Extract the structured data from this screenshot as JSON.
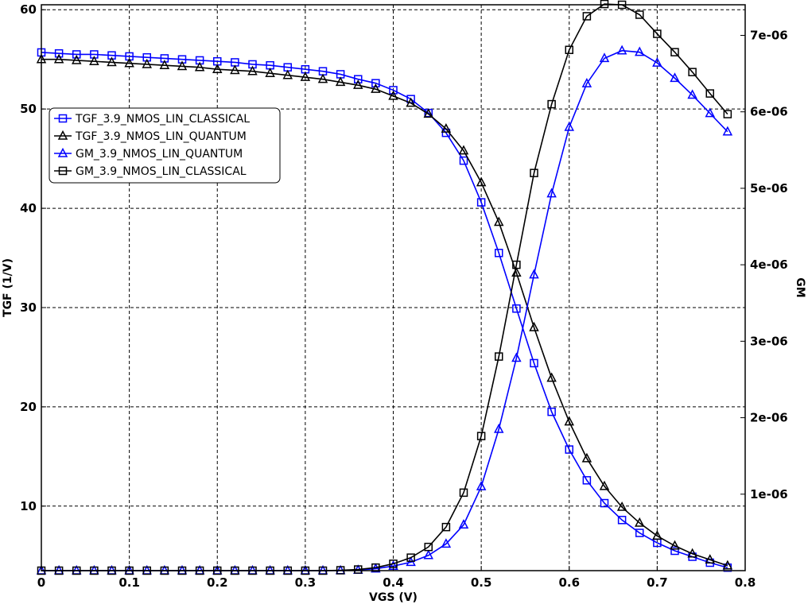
{
  "chart_data": {
    "type": "line",
    "xlabel": "VGS (V)",
    "ylabel": "TGF (1/V)",
    "y2label": "GM",
    "xlim": [
      0,
      0.8
    ],
    "ylim": [
      3.5,
      60.5
    ],
    "y2lim": [
      0,
      7.4e-06
    ],
    "x_ticks": [
      "0",
      "0.1",
      "0.2",
      "0.3",
      "0.4",
      "0.5",
      "0.6",
      "0.7",
      "0.8"
    ],
    "y_ticks": [
      "10",
      "20",
      "30",
      "40",
      "50",
      "60"
    ],
    "y2_ticks": [
      "1e-06",
      "2e-06",
      "3e-06",
      "4e-06",
      "5e-06",
      "6e-06",
      "7e-06"
    ],
    "grid": true,
    "legend_position": "left, upper-middle",
    "x": [
      0,
      0.02,
      0.04,
      0.06,
      0.08,
      0.1,
      0.12,
      0.14,
      0.16,
      0.18,
      0.2,
      0.22,
      0.24,
      0.26,
      0.28,
      0.3,
      0.32,
      0.34,
      0.36,
      0.38,
      0.4,
      0.42,
      0.44,
      0.46,
      0.48,
      0.5,
      0.52,
      0.54,
      0.56,
      0.58,
      0.6,
      0.62,
      0.64,
      0.66,
      0.68,
      0.7,
      0.72,
      0.74,
      0.76,
      0.78
    ],
    "series": [
      {
        "name": "TGF_3.9_NMOS_LIN_CLASSICAL",
        "axis": "left",
        "color": "#0000ff",
        "marker": "square",
        "values": [
          55.7,
          55.6,
          55.5,
          55.5,
          55.4,
          55.3,
          55.2,
          55.1,
          55.0,
          54.9,
          54.8,
          54.7,
          54.5,
          54.4,
          54.2,
          54.0,
          53.8,
          53.5,
          53.0,
          52.6,
          51.9,
          51.0,
          49.6,
          47.6,
          44.8,
          40.6,
          35.5,
          29.9,
          24.4,
          19.5,
          15.7,
          12.6,
          10.3,
          8.6,
          7.3,
          6.3,
          5.5,
          4.9,
          4.3,
          3.8
        ]
      },
      {
        "name": "TGF_3.9_NMOS_LIN_QUANTUM",
        "axis": "left",
        "color": "#000000",
        "marker": "triangle",
        "values": [
          55.0,
          55.0,
          54.9,
          54.8,
          54.7,
          54.6,
          54.5,
          54.4,
          54.3,
          54.2,
          54.0,
          53.9,
          53.8,
          53.6,
          53.4,
          53.2,
          53.0,
          52.7,
          52.4,
          52.0,
          51.3,
          50.6,
          49.5,
          48.0,
          45.8,
          42.6,
          38.6,
          33.5,
          28.0,
          22.9,
          18.5,
          14.8,
          12.0,
          9.9,
          8.3,
          7.0,
          6.0,
          5.2,
          4.6,
          4.0
        ]
      },
      {
        "name": "GM_3.9_NMOS_LIN_QUANTUM",
        "axis": "right",
        "color": "#0000ff",
        "marker": "triangle",
        "values": [
          0,
          0,
          0,
          0,
          0,
          0,
          0,
          0,
          0,
          0,
          0,
          0,
          0,
          0,
          0,
          0,
          0,
          2e-09,
          8e-09,
          2.5e-08,
          6e-08,
          1.1e-07,
          2e-07,
          3.5e-07,
          6e-07,
          1.1e-06,
          1.85e-06,
          2.78e-06,
          3.87e-06,
          4.93e-06,
          5.8e-06,
          6.37e-06,
          6.7e-06,
          6.8e-06,
          6.78e-06,
          6.64e-06,
          6.44e-06,
          6.22e-06,
          5.98e-06,
          5.74e-06
        ]
      },
      {
        "name": "GM_3.9_NMOS_LIN_CLASSICAL",
        "axis": "right",
        "color": "#000000",
        "marker": "square",
        "values": [
          0,
          0,
          0,
          0,
          0,
          0,
          0,
          0,
          0,
          0,
          0,
          0,
          0,
          0,
          0,
          0,
          0,
          5e-09,
          1.5e-08,
          4e-08,
          9e-08,
          1.7e-07,
          3.1e-07,
          5.7e-07,
          1.02e-06,
          1.76e-06,
          2.8e-06,
          4e-06,
          5.2e-06,
          6.1e-06,
          6.81e-06,
          7.25e-06,
          7.41e-06,
          7.4e-06,
          7.27e-06,
          7.02e-06,
          6.78e-06,
          6.52e-06,
          6.24e-06,
          5.97e-06
        ]
      }
    ]
  }
}
